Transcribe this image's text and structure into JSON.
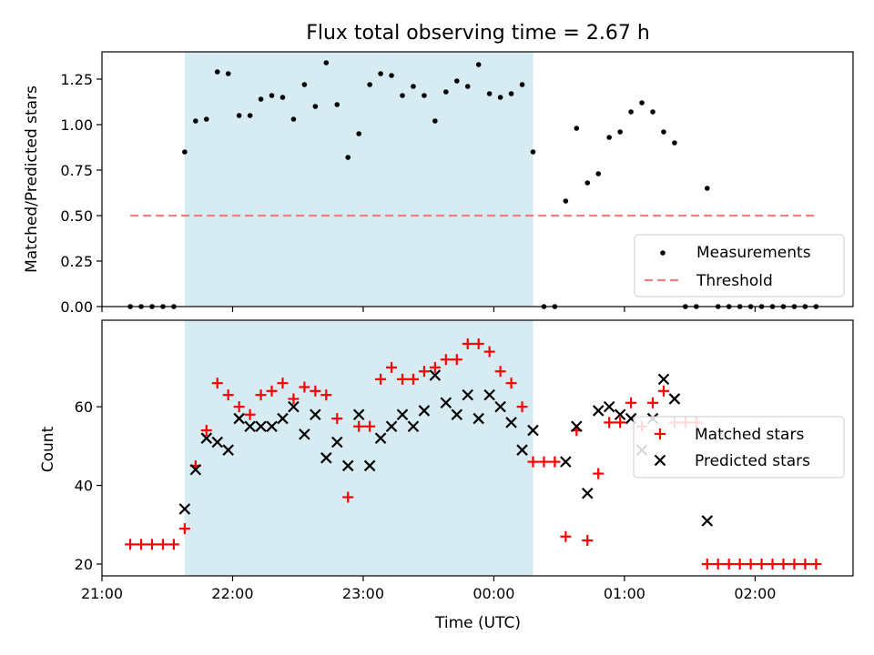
{
  "title": "Flux total observing time = 2.67 h",
  "colors": {
    "shade": "#add8e6",
    "threshold": "#f08080",
    "matched": "#ff0000",
    "predicted": "#000000",
    "measurement": "#000000"
  },
  "chart_data": [
    {
      "type": "scatter",
      "panel": "top",
      "ylabel": "Matched/Predicted stars",
      "ylim": [
        0,
        1.4
      ],
      "yticks": [
        0,
        0.25,
        0.5,
        0.75,
        1,
        1.25
      ],
      "ytick_labels": [
        "0.00",
        "0.25",
        "0.50",
        "0.75",
        "1.00",
        "1.25"
      ],
      "xlim": [
        "21:00",
        "02:45"
      ],
      "shaded_interval": [
        "21:38",
        "00:18"
      ],
      "legend": {
        "position": "lower-right",
        "entries": [
          "Measurements",
          "Threshold"
        ]
      },
      "threshold": {
        "value": 0.5,
        "x": [
          "21:13",
          "02:28"
        ]
      },
      "series": [
        {
          "name": "Measurements",
          "style": "dot",
          "points": [
            [
              "21:13",
              0
            ],
            [
              "21:18",
              0
            ],
            [
              "21:23",
              0
            ],
            [
              "21:28",
              0
            ],
            [
              "21:33",
              0
            ],
            [
              "21:38",
              0.85
            ],
            [
              "21:43",
              1.02
            ],
            [
              "21:48",
              1.03
            ],
            [
              "21:53",
              1.29
            ],
            [
              "21:58",
              1.28
            ],
            [
              "22:03",
              1.05
            ],
            [
              "22:08",
              1.05
            ],
            [
              "22:13",
              1.14
            ],
            [
              "22:18",
              1.16
            ],
            [
              "22:23",
              1.15
            ],
            [
              "22:28",
              1.03
            ],
            [
              "22:33",
              1.22
            ],
            [
              "22:38",
              1.1
            ],
            [
              "22:43",
              1.34
            ],
            [
              "22:48",
              1.11
            ],
            [
              "22:53",
              0.82
            ],
            [
              "22:58",
              0.95
            ],
            [
              "23:03",
              1.22
            ],
            [
              "23:08",
              1.28
            ],
            [
              "23:13",
              1.27
            ],
            [
              "23:18",
              1.16
            ],
            [
              "23:23",
              1.21
            ],
            [
              "23:28",
              1.16
            ],
            [
              "23:33",
              1.02
            ],
            [
              "23:38",
              1.18
            ],
            [
              "23:43",
              1.24
            ],
            [
              "23:48",
              1.21
            ],
            [
              "23:53",
              1.33
            ],
            [
              "23:58",
              1.17
            ],
            [
              "00:03",
              1.15
            ],
            [
              "00:08",
              1.17
            ],
            [
              "00:13",
              1.22
            ],
            [
              "00:18",
              0.85
            ],
            [
              "00:23",
              0
            ],
            [
              "00:28",
              0
            ],
            [
              "00:33",
              0.58
            ],
            [
              "00:38",
              0.98
            ],
            [
              "00:43",
              0.68
            ],
            [
              "00:48",
              0.73
            ],
            [
              "00:53",
              0.93
            ],
            [
              "00:58",
              0.96
            ],
            [
              "01:03",
              1.07
            ],
            [
              "01:08",
              1.12
            ],
            [
              "01:13",
              1.07
            ],
            [
              "01:18",
              0.96
            ],
            [
              "01:23",
              0.9
            ],
            [
              "01:28",
              0
            ],
            [
              "01:33",
              0
            ],
            [
              "01:38",
              0.65
            ],
            [
              "01:43",
              0
            ],
            [
              "01:48",
              0
            ],
            [
              "01:53",
              0
            ],
            [
              "01:58",
              0
            ],
            [
              "02:03",
              0
            ],
            [
              "02:08",
              0
            ],
            [
              "02:13",
              0
            ],
            [
              "02:18",
              0
            ],
            [
              "02:23",
              0
            ],
            [
              "02:28",
              0
            ]
          ]
        },
        {
          "name": "Threshold",
          "style": "dashed-line"
        }
      ]
    },
    {
      "type": "scatter",
      "panel": "bottom",
      "xlabel": "Time (UTC)",
      "ylabel": "Count",
      "ylim": [
        17,
        82
      ],
      "yticks": [
        20,
        40,
        60
      ],
      "xlim": [
        "21:00",
        "02:45"
      ],
      "xticks": [
        "21:00",
        "22:00",
        "23:00",
        "00:00",
        "01:00",
        "02:00"
      ],
      "shaded_interval": [
        "21:38",
        "00:18"
      ],
      "legend": {
        "position": "right",
        "entries": [
          "Matched stars",
          "Predicted stars"
        ]
      },
      "series": [
        {
          "name": "Matched stars",
          "style": "plus",
          "points": [
            [
              "21:13",
              25
            ],
            [
              "21:18",
              25
            ],
            [
              "21:23",
              25
            ],
            [
              "21:28",
              25
            ],
            [
              "21:33",
              25
            ],
            [
              "21:38",
              29
            ],
            [
              "21:43",
              45
            ],
            [
              "21:48",
              54
            ],
            [
              "21:53",
              66
            ],
            [
              "21:58",
              63
            ],
            [
              "22:03",
              60
            ],
            [
              "22:08",
              58
            ],
            [
              "22:13",
              63
            ],
            [
              "22:18",
              64
            ],
            [
              "22:23",
              66
            ],
            [
              "22:28",
              62
            ],
            [
              "22:33",
              65
            ],
            [
              "22:38",
              64
            ],
            [
              "22:43",
              63
            ],
            [
              "22:48",
              57
            ],
            [
              "22:53",
              37
            ],
            [
              "22:58",
              55
            ],
            [
              "23:03",
              55
            ],
            [
              "23:08",
              67
            ],
            [
              "23:13",
              70
            ],
            [
              "23:18",
              67
            ],
            [
              "23:23",
              67
            ],
            [
              "23:28",
              69
            ],
            [
              "23:33",
              70
            ],
            [
              "23:38",
              72
            ],
            [
              "23:43",
              72
            ],
            [
              "23:48",
              76
            ],
            [
              "23:53",
              76
            ],
            [
              "23:58",
              74
            ],
            [
              "00:03",
              69
            ],
            [
              "00:08",
              66
            ],
            [
              "00:13",
              60
            ],
            [
              "00:18",
              46
            ],
            [
              "00:23",
              46
            ],
            [
              "00:28",
              46
            ],
            [
              "00:33",
              27
            ],
            [
              "00:38",
              54
            ],
            [
              "00:43",
              26
            ],
            [
              "00:48",
              43
            ],
            [
              "00:53",
              56
            ],
            [
              "00:58",
              56
            ],
            [
              "01:03",
              61
            ],
            [
              "01:08",
              55
            ],
            [
              "01:13",
              61
            ],
            [
              "01:18",
              64
            ],
            [
              "01:23",
              56
            ],
            [
              "01:28",
              56
            ],
            [
              "01:33",
              56
            ],
            [
              "01:38",
              20
            ],
            [
              "01:43",
              20
            ],
            [
              "01:48",
              20
            ],
            [
              "01:53",
              20
            ],
            [
              "01:58",
              20
            ],
            [
              "02:03",
              20
            ],
            [
              "02:08",
              20
            ],
            [
              "02:13",
              20
            ],
            [
              "02:18",
              20
            ],
            [
              "02:23",
              20
            ],
            [
              "02:28",
              20
            ]
          ]
        },
        {
          "name": "Predicted stars",
          "style": "x",
          "points": [
            [
              "21:38",
              34
            ],
            [
              "21:43",
              44
            ],
            [
              "21:48",
              52
            ],
            [
              "21:53",
              51
            ],
            [
              "21:58",
              49
            ],
            [
              "22:03",
              57
            ],
            [
              "22:08",
              55
            ],
            [
              "22:13",
              55
            ],
            [
              "22:18",
              55
            ],
            [
              "22:23",
              57
            ],
            [
              "22:28",
              60
            ],
            [
              "22:33",
              53
            ],
            [
              "22:38",
              58
            ],
            [
              "22:43",
              47
            ],
            [
              "22:48",
              51
            ],
            [
              "22:53",
              45
            ],
            [
              "22:58",
              58
            ],
            [
              "23:03",
              45
            ],
            [
              "23:08",
              52
            ],
            [
              "23:13",
              55
            ],
            [
              "23:18",
              58
            ],
            [
              "23:23",
              55
            ],
            [
              "23:28",
              59
            ],
            [
              "23:33",
              68
            ],
            [
              "23:38",
              61
            ],
            [
              "23:43",
              58
            ],
            [
              "23:48",
              63
            ],
            [
              "23:53",
              57
            ],
            [
              "23:58",
              63
            ],
            [
              "00:03",
              60
            ],
            [
              "00:08",
              56
            ],
            [
              "00:13",
              49
            ],
            [
              "00:18",
              54
            ],
            [
              "00:33",
              46
            ],
            [
              "00:38",
              55
            ],
            [
              "00:43",
              38
            ],
            [
              "00:48",
              59
            ],
            [
              "00:53",
              60
            ],
            [
              "00:58",
              58
            ],
            [
              "01:03",
              57
            ],
            [
              "01:08",
              49
            ],
            [
              "01:13",
              57
            ],
            [
              "01:18",
              67
            ],
            [
              "01:23",
              62
            ],
            [
              "01:38",
              31
            ]
          ]
        }
      ]
    }
  ]
}
